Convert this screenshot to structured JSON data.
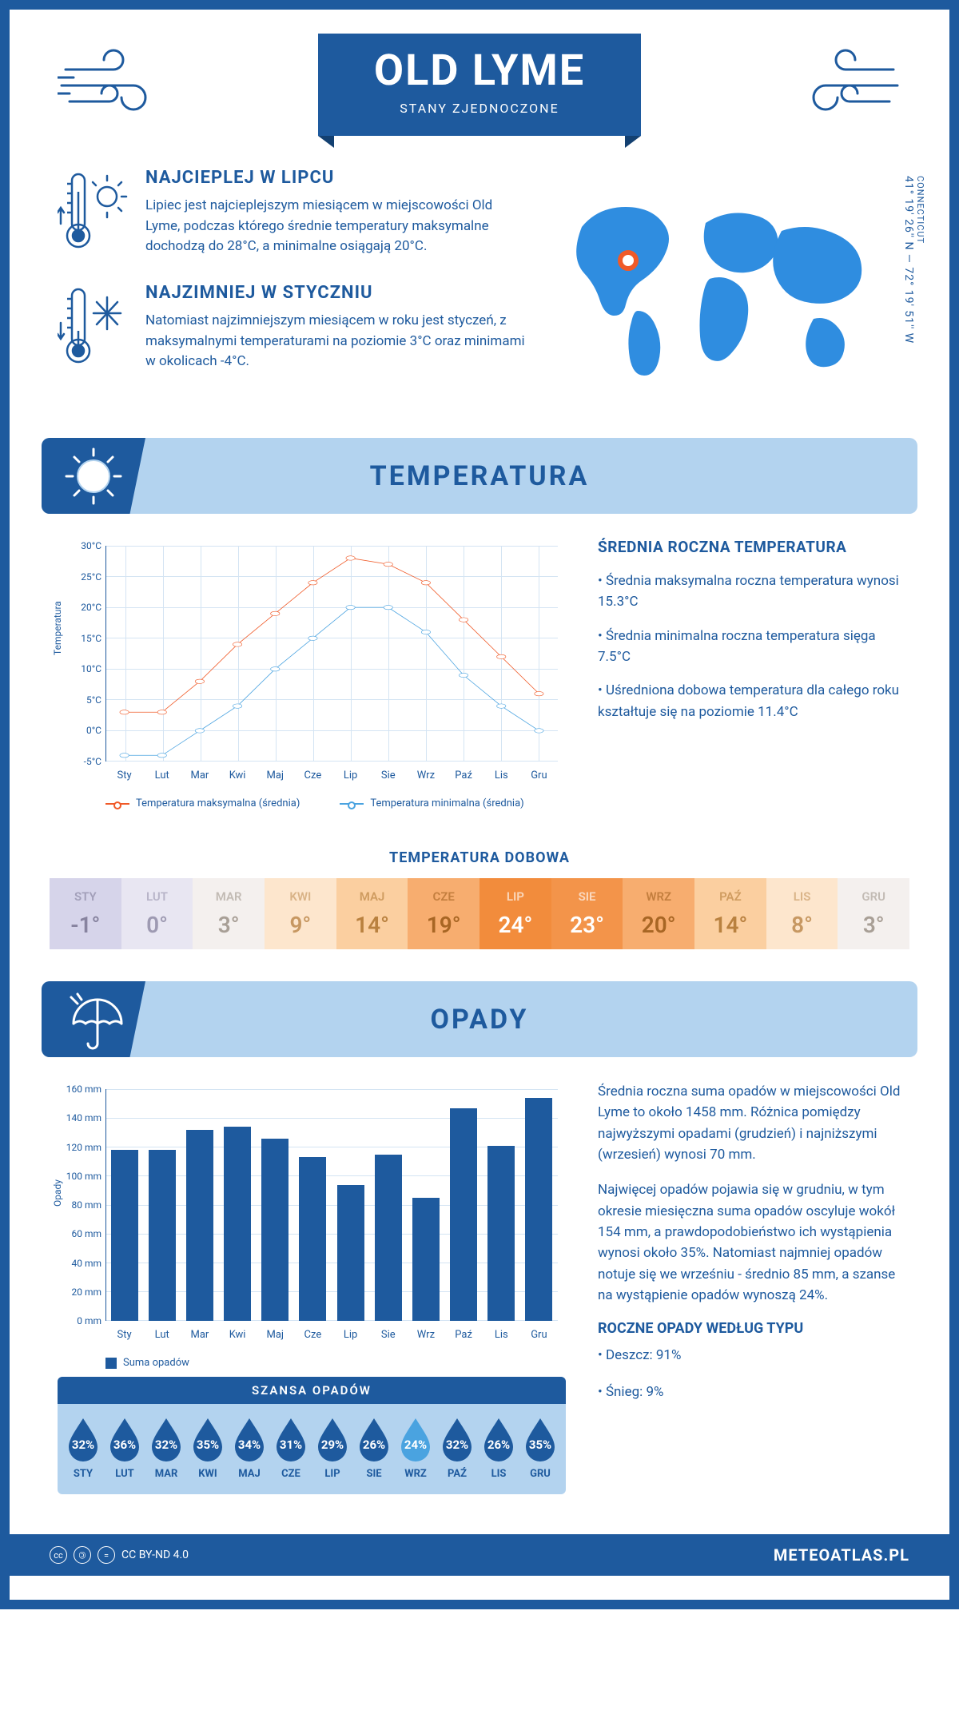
{
  "header": {
    "title": "OLD LYME",
    "subtitle": "STANY ZJEDNOCZONE"
  },
  "intro": {
    "warm": {
      "heading": "NAJCIEPLEJ W LIPCU",
      "text": "Lipiec jest najcieplejszym miesiącem w miejscowości Old Lyme, podczas którego średnie temperatury maksymalne dochodzą do 28°C, a minimalne osiągają 20°C."
    },
    "cold": {
      "heading": "NAJZIMNIEJ W STYCZNIU",
      "text": "Natomiast najzimniejszym miesiącem w roku jest styczeń, z maksymalnymi temperaturami na poziomie 3°C oraz minimami w okolicach -4°C."
    },
    "coords": "41° 19' 26'' N — 72° 19' 51'' W",
    "state": "CONNECTICUT"
  },
  "colors": {
    "primary": "#1e5a9e",
    "light": "#b3d3ef",
    "max_line": "#f05a28",
    "min_line": "#4aa3e0",
    "grid": "#d4e4f3",
    "drop_dark": "#1e5a9e",
    "drop_light": "#4aa3e0"
  },
  "temperature": {
    "section_title": "TEMPERATURA",
    "chart": {
      "ylabel": "Temperatura",
      "ymin": -5,
      "ymax": 30,
      "ytick_step": 5,
      "ytick_suffix": "°C",
      "months": [
        "Sty",
        "Lut",
        "Mar",
        "Kwi",
        "Maj",
        "Cze",
        "Lip",
        "Sie",
        "Wrz",
        "Paź",
        "Lis",
        "Gru"
      ],
      "series": [
        {
          "name": "Temperatura maksymalna (średnia)",
          "color": "#f05a28",
          "values": [
            3,
            3,
            8,
            14,
            19,
            24,
            28,
            27,
            24,
            18,
            12,
            6
          ]
        },
        {
          "name": "Temperatura minimalna (średnia)",
          "color": "#4aa3e0",
          "values": [
            -4,
            -4,
            0,
            4,
            10,
            15,
            20,
            20,
            16,
            9,
            4,
            0
          ]
        }
      ]
    },
    "meta": {
      "heading": "ŚREDNIA ROCZNA TEMPERATURA",
      "bullets": [
        "Średnia maksymalna roczna temperatura wynosi 15.3°C",
        "Średnia minimalna roczna temperatura sięga 7.5°C",
        "Uśredniona dobowa temperatura dla całego roku kształtuje się na poziomie 11.4°C"
      ]
    },
    "daily": {
      "title": "TEMPERATURA DOBOWA",
      "months": [
        "STY",
        "LUT",
        "MAR",
        "KWI",
        "MAJ",
        "CZE",
        "LIP",
        "SIE",
        "WRZ",
        "PAŹ",
        "LIS",
        "GRU"
      ],
      "values": [
        "-1°",
        "0°",
        "3°",
        "9°",
        "14°",
        "19°",
        "24°",
        "23°",
        "20°",
        "14°",
        "8°",
        "3°"
      ],
      "bg": [
        "#d6d4ea",
        "#e8e6f2",
        "#f4f0ee",
        "#fde6cd",
        "#fbcfa0",
        "#f7ad6f",
        "#f28c3c",
        "#f3944a",
        "#f7ad6f",
        "#fbcfa0",
        "#fde6cd",
        "#f4f0ee"
      ],
      "fg": [
        "#87839f",
        "#9e9ab2",
        "#a89f96",
        "#c79862",
        "#b9813f",
        "#a86624",
        "#ffffff",
        "#ffffff",
        "#a86624",
        "#b9813f",
        "#c79862",
        "#a89f96"
      ]
    }
  },
  "precip": {
    "section_title": "OPADY",
    "chart": {
      "ylabel": "Opady",
      "ymin": 0,
      "ymax": 160,
      "ytick_step": 20,
      "ytick_suffix": " mm",
      "months": [
        "Sty",
        "Lut",
        "Mar",
        "Kwi",
        "Maj",
        "Cze",
        "Lip",
        "Sie",
        "Wrz",
        "Paź",
        "Lis",
        "Gru"
      ],
      "values": [
        118,
        118,
        132,
        134,
        126,
        113,
        94,
        115,
        85,
        147,
        121,
        154
      ],
      "legend": "Suma opadów",
      "bar_color": "#1e5a9e"
    },
    "meta": {
      "p1": "Średnia roczna suma opadów w miejscowości Old Lyme to około 1458 mm. Różnica pomiędzy najwyższymi opadami (grudzień) i najniższymi (wrzesień) wynosi 70 mm.",
      "p2": "Najwięcej opadów pojawia się w grudniu, w tym okresie miesięczna suma opadów oscyluje wokół 154 mm, a prawdopodobieństwo ich wystąpienia wynosi około 35%. Natomiast najmniej opadów notuje się we wrześniu - średnio 85 mm, a szanse na wystąpienie opadów wynoszą 24%.",
      "type_heading": "ROCZNE OPADY WEDŁUG TYPU",
      "types": [
        "Deszcz: 91%",
        "Śnieg: 9%"
      ]
    },
    "chance": {
      "title": "SZANSA OPADÓW",
      "months": [
        "STY",
        "LUT",
        "MAR",
        "KWI",
        "MAJ",
        "CZE",
        "LIP",
        "SIE",
        "WRZ",
        "PAŹ",
        "LIS",
        "GRU"
      ],
      "pct": [
        "32%",
        "36%",
        "32%",
        "35%",
        "34%",
        "31%",
        "29%",
        "26%",
        "24%",
        "32%",
        "26%",
        "35%"
      ],
      "light_index": 8
    }
  },
  "footer": {
    "license": "CC BY-ND 4.0",
    "site": "METEOATLAS.PL"
  }
}
